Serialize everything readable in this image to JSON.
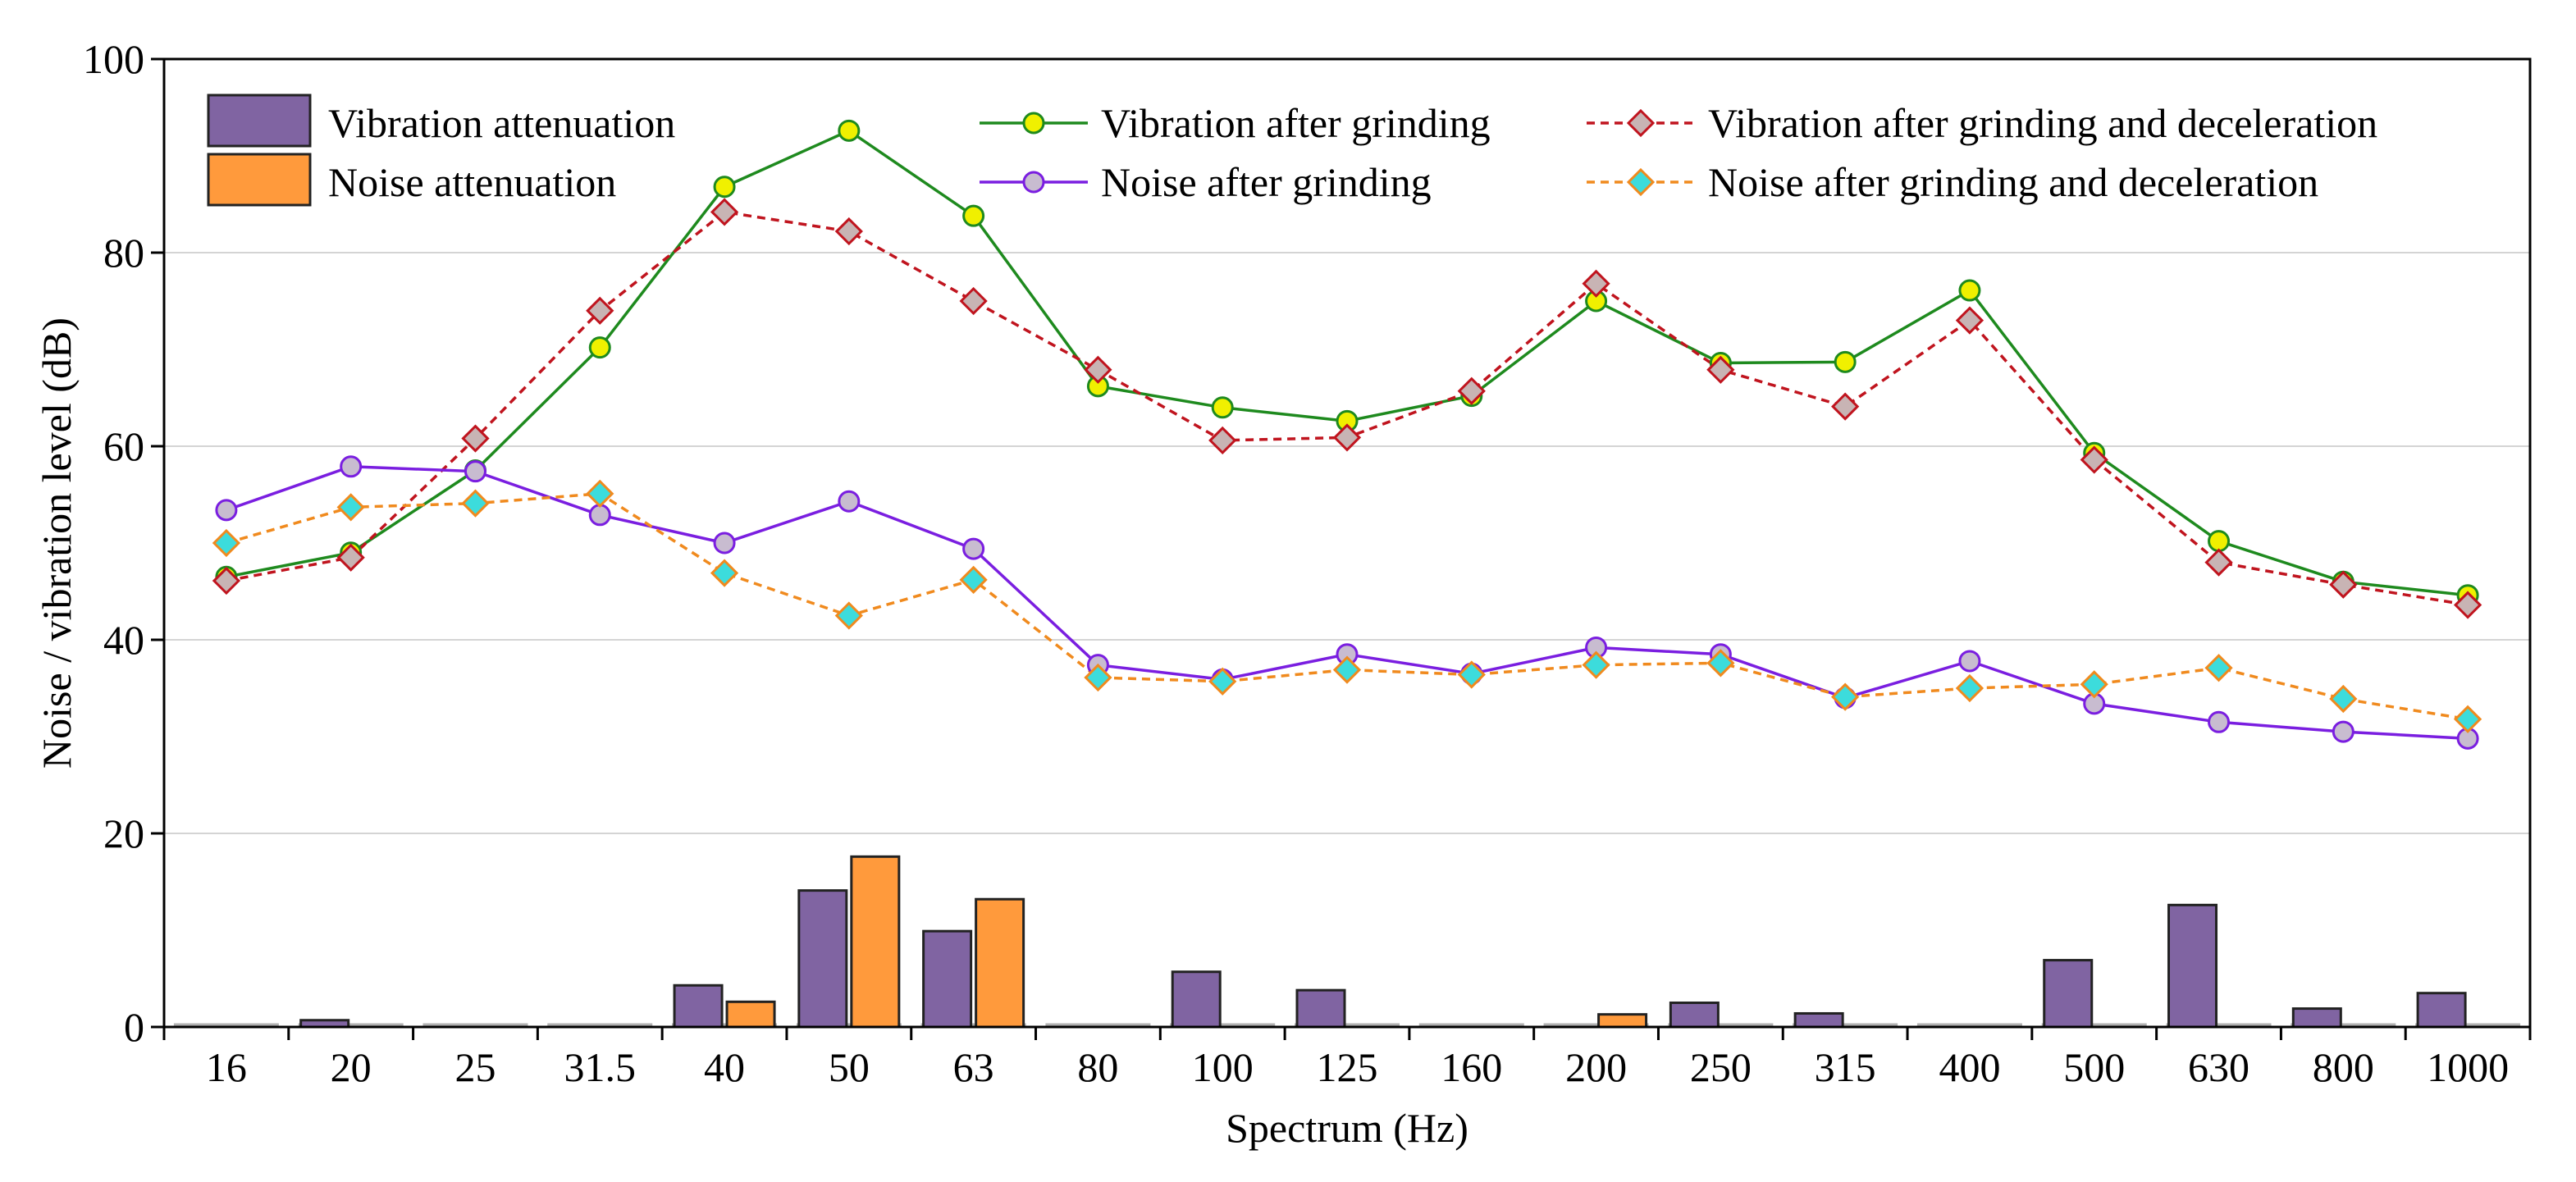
{
  "chart_data": {
    "type": "bar+line",
    "xlabel": "Spectrum (Hz)",
    "ylabel": "Noise / vibration level (dB)",
    "ylim": [
      0,
      100
    ],
    "yticks": [
      0,
      20,
      40,
      60,
      80,
      100
    ],
    "grid": "horizontal",
    "legend_position": "top",
    "categories": [
      "16",
      "20",
      "25",
      "31.5",
      "40",
      "50",
      "63",
      "80",
      "100",
      "125",
      "160",
      "200",
      "250",
      "315",
      "400",
      "500",
      "630",
      "800",
      "1000"
    ],
    "bar_series": [
      {
        "name": "Vibration attenuation",
        "color": "#8064a2",
        "values": [
          0,
          0.7,
          0,
          0,
          4.3,
          14.1,
          9.9,
          0,
          5.7,
          3.8,
          0,
          0,
          2.5,
          1.4,
          0,
          6.9,
          12.6,
          1.9,
          3.5
        ]
      },
      {
        "name": "Noise attenuation",
        "color": "#ff9a3c",
        "values": [
          0,
          0,
          0,
          0,
          2.6,
          17.6,
          13.2,
          0,
          0,
          0,
          0,
          1.3,
          0,
          0,
          0,
          0,
          0,
          0,
          0
        ]
      }
    ],
    "line_series": [
      {
        "name": "Vibration after grinding",
        "color": "#1e8a1e",
        "dash": "solid",
        "marker": "circle",
        "marker_fill": "#f0f000",
        "values": [
          46.5,
          49,
          57.5,
          70.2,
          86.8,
          92.6,
          83.8,
          66.2,
          64,
          62.6,
          65.2,
          75,
          68.6,
          68.7,
          76.1,
          59.3,
          50.2,
          46,
          44.6
        ]
      },
      {
        "name": "Vibration after grinding and deceleration",
        "color": "#c0141e",
        "dash": "dashed",
        "marker": "diamond",
        "marker_fill": "#c8b4b4",
        "values": [
          46.1,
          48.5,
          60.8,
          74,
          84.2,
          82.2,
          75,
          67.9,
          60.6,
          60.9,
          65.7,
          76.8,
          67.9,
          64.1,
          73,
          58.6,
          48,
          45.7,
          43.6
        ]
      },
      {
        "name": "Noise after grinding",
        "color": "#7a1ee0",
        "dash": "solid",
        "marker": "circle",
        "marker_fill": "#c8bcd0",
        "values": [
          53.4,
          57.9,
          57.4,
          52.9,
          50,
          54.3,
          49.4,
          37.4,
          35.9,
          38.5,
          36.5,
          39.2,
          38.5,
          34,
          37.8,
          33.4,
          31.5,
          30.5,
          29.8
        ]
      },
      {
        "name": "Noise after grinding and deceleration",
        "color": "#f08a1e",
        "dash": "dashed",
        "marker": "diamond",
        "marker_fill": "#3cdcdc",
        "values": [
          50,
          53.7,
          54.1,
          55.1,
          46.9,
          42.5,
          46.2,
          36.1,
          35.7,
          36.9,
          36.4,
          37.4,
          37.6,
          34.1,
          35,
          35.4,
          37.1,
          33.9,
          31.8
        ]
      }
    ]
  }
}
